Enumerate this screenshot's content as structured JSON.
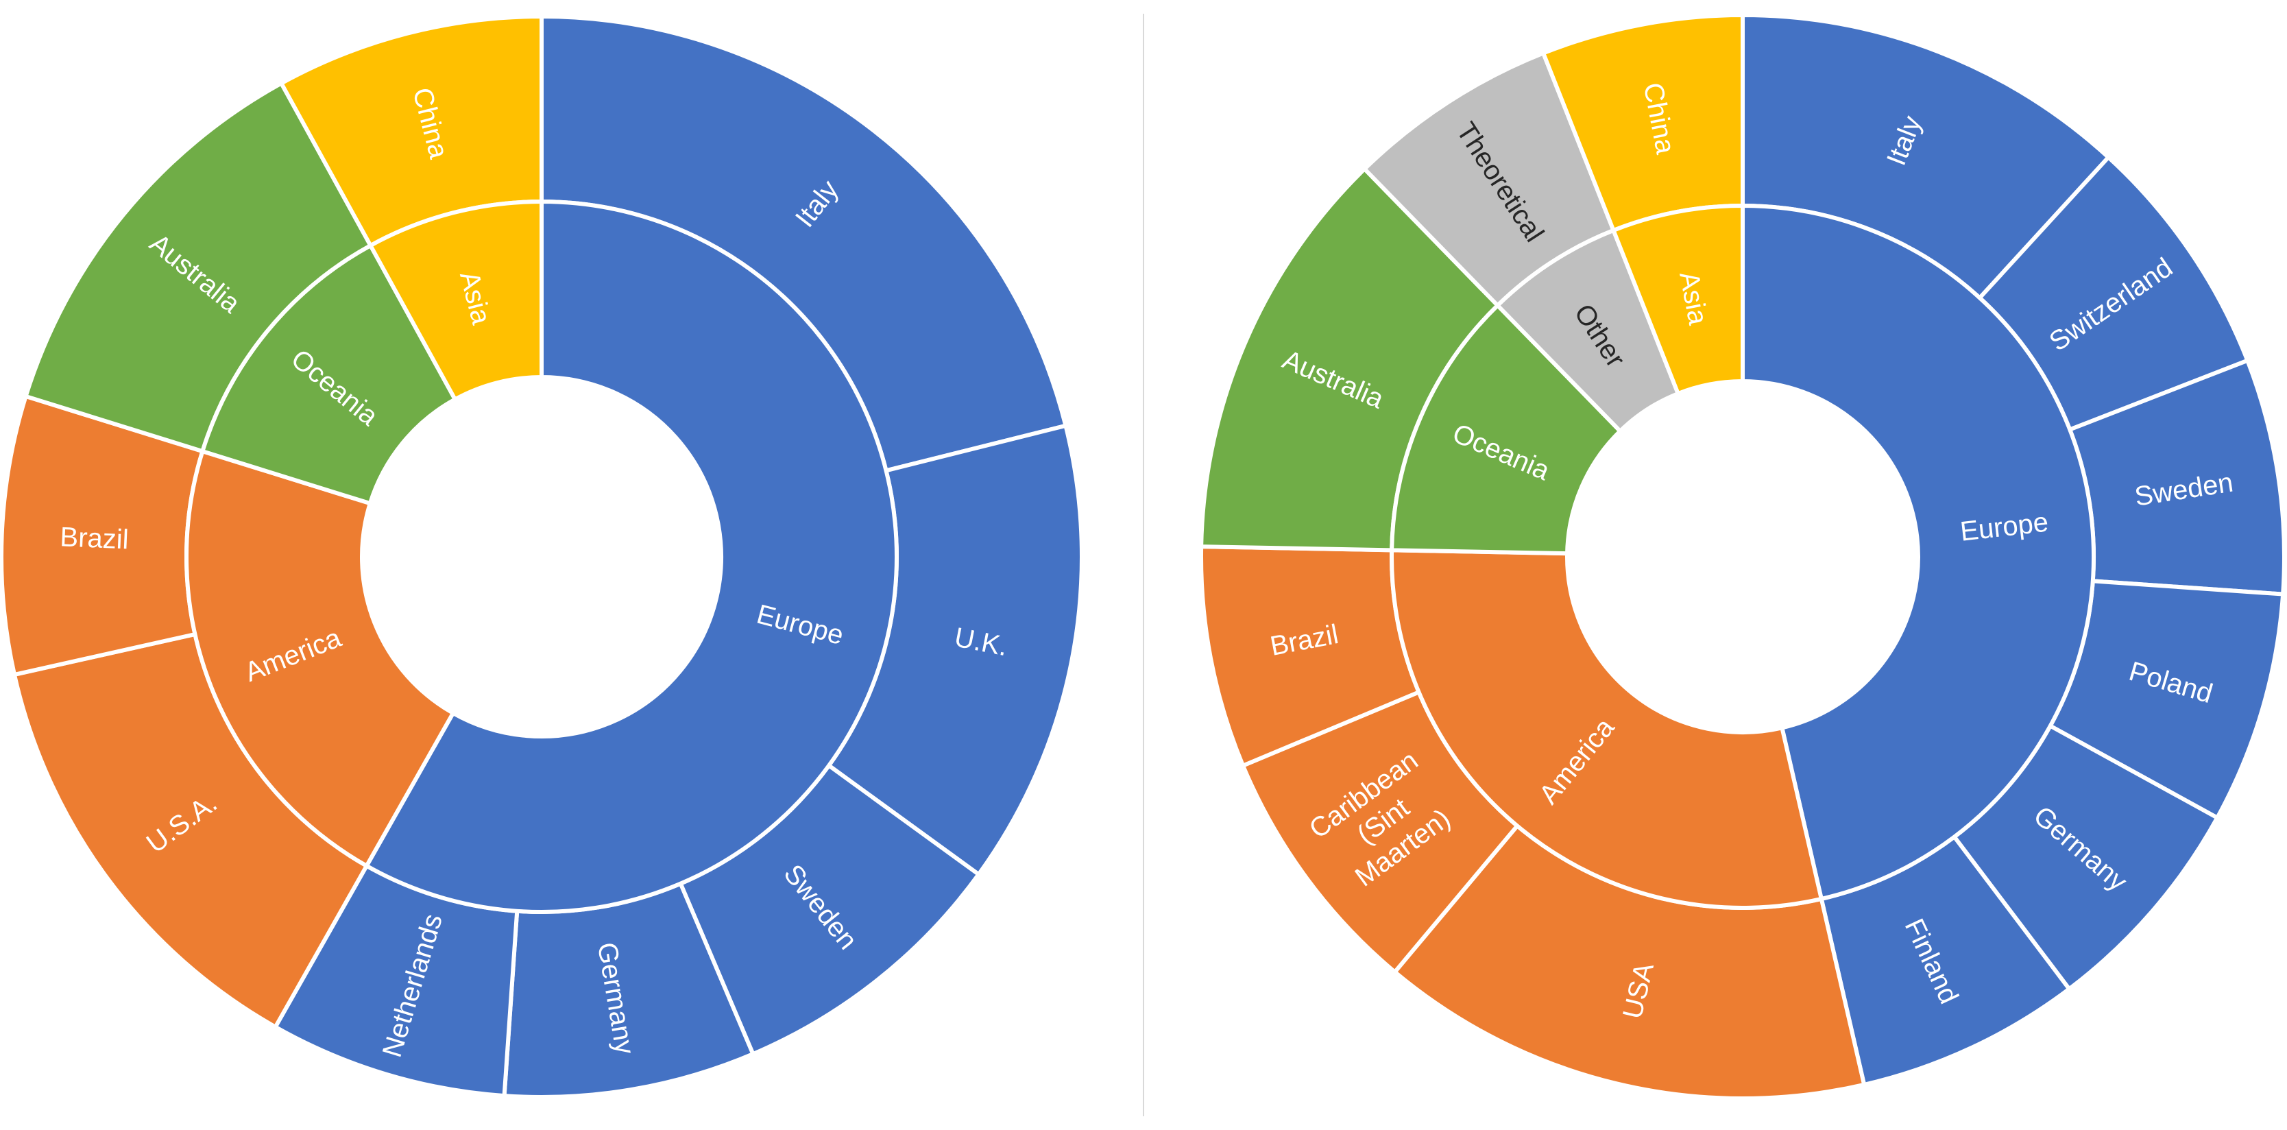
{
  "colors": {
    "Europe": "#4472C4",
    "America": "#ED7D31",
    "Oceania": "#70AD47",
    "Asia": "#FFC000",
    "Other": "#BFBFBF",
    "separator": "#FFFFFF",
    "dark_label": "#262626"
  },
  "chart_data": [
    {
      "type": "sunburst",
      "title": "",
      "unit": "share of total",
      "groups": [
        {
          "name": "Europe",
          "color_key": "Europe",
          "children": [
            {
              "name": "Italy",
              "value": 21.1
            },
            {
              "name": "U.K.",
              "value": 13.9
            },
            {
              "name": "Sweden",
              "value": 8.6
            },
            {
              "name": "Germany",
              "value": 7.5
            },
            {
              "name": "Netherlands",
              "value": 7.1
            }
          ]
        },
        {
          "name": "America",
          "color_key": "America",
          "children": [
            {
              "name": "U.S.A.",
              "value": 13.3
            },
            {
              "name": "Brazil",
              "value": 8.3
            }
          ]
        },
        {
          "name": "Oceania",
          "color_key": "Oceania",
          "children": [
            {
              "name": "Australia",
              "value": 12.2
            }
          ]
        },
        {
          "name": "Asia",
          "color_key": "Asia",
          "children": [
            {
              "name": "China",
              "value": 8.0
            }
          ]
        }
      ]
    },
    {
      "type": "sunburst",
      "title": "",
      "unit": "share of total",
      "groups": [
        {
          "name": "Europe",
          "color_key": "Europe",
          "children": [
            {
              "name": "Italy",
              "value": 11.8
            },
            {
              "name": "Switzerland",
              "value": 7.3
            },
            {
              "name": "Sweden",
              "value": 7.0
            },
            {
              "name": "Poland",
              "value": 6.9
            },
            {
              "name": "Germany",
              "value": 6.7
            },
            {
              "name": "Finland",
              "value": 6.7
            }
          ]
        },
        {
          "name": "America",
          "color_key": "America",
          "children": [
            {
              "name": "USA",
              "value": 14.7
            },
            {
              "name": "Caribbean (Sint Maarten)",
              "value": 7.6
            },
            {
              "name": "Brazil",
              "value": 6.6
            }
          ]
        },
        {
          "name": "Oceania",
          "color_key": "Oceania",
          "children": [
            {
              "name": "Australia",
              "value": 12.4
            }
          ]
        },
        {
          "name": "Other",
          "color_key": "Other",
          "label_style": "dark",
          "children": [
            {
              "name": "Theoretical",
              "value": 6.3
            }
          ]
        },
        {
          "name": "Asia",
          "color_key": "Asia",
          "children": [
            {
              "name": "China",
              "value": 6.0
            }
          ]
        }
      ]
    }
  ]
}
